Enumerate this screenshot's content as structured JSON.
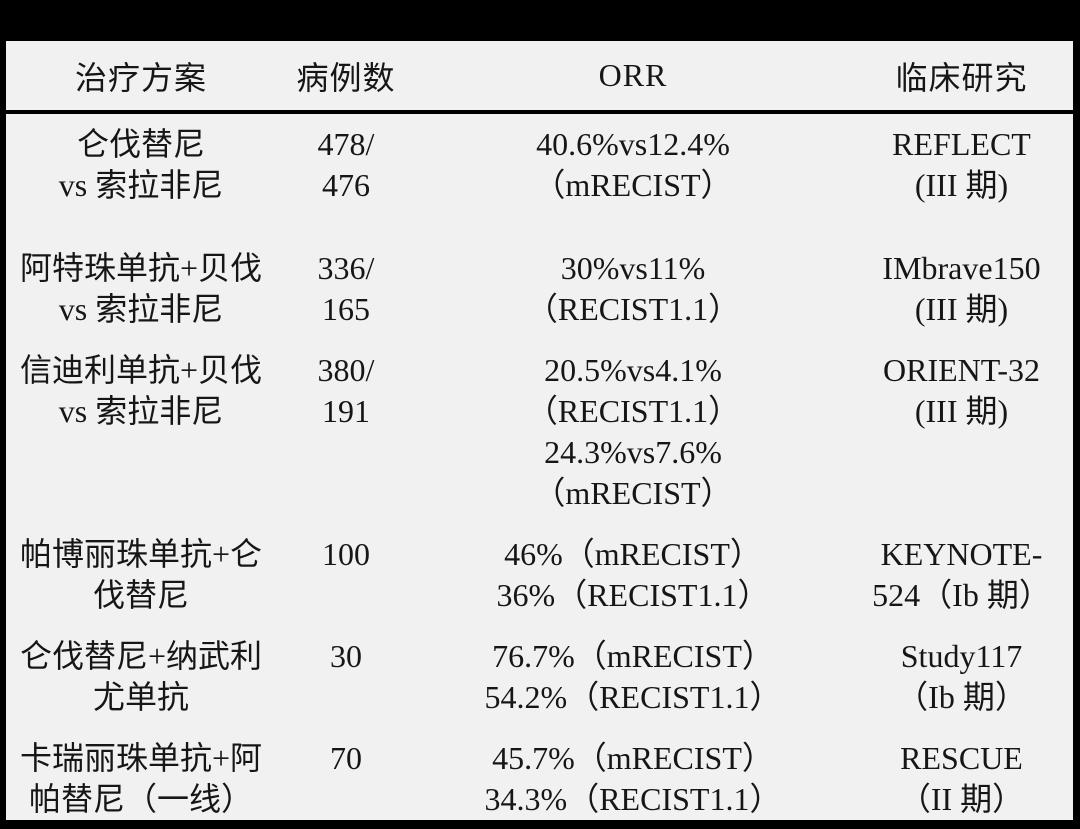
{
  "colors": {
    "page_bg": "#000000",
    "table_bg": "#f1f1f1",
    "text": "#161616",
    "rule": "#000000"
  },
  "table": {
    "headers": {
      "treatment": "治疗方案",
      "cases": "病例数",
      "orr": "ORR",
      "study": "临床研究"
    },
    "rows": [
      {
        "treatment": [
          "仑伐替尼",
          "vs 索拉非尼"
        ],
        "cases": [
          "478/",
          "476"
        ],
        "orr": [
          "40.6%vs12.4%",
          "（mRECIST）"
        ],
        "study": [
          "REFLECT",
          "(III 期)"
        ]
      },
      {
        "treatment": [
          "阿特珠单抗+贝伐",
          "vs 索拉非尼"
        ],
        "cases": [
          "336/",
          "165"
        ],
        "orr": [
          "30%vs11%",
          "（RECIST1.1）"
        ],
        "study": [
          "IMbrave150",
          "(III 期)"
        ]
      },
      {
        "treatment": [
          "信迪利单抗+贝伐",
          "vs 索拉非尼"
        ],
        "cases": [
          "380/",
          "191"
        ],
        "orr": [
          "20.5%vs4.1%",
          "（RECIST1.1）",
          "24.3%vs7.6%",
          "（mRECIST）"
        ],
        "study": [
          "ORIENT-32",
          "(III 期)"
        ]
      },
      {
        "treatment": [
          "帕博丽珠单抗+仑",
          "伐替尼"
        ],
        "cases": [
          "100"
        ],
        "orr": [
          "46%（mRECIST）",
          "36%（RECIST1.1）"
        ],
        "study": [
          "KEYNOTE-",
          "524（Ib 期）"
        ]
      },
      {
        "treatment": [
          "仑伐替尼+纳武利",
          "尤单抗"
        ],
        "cases": [
          "30"
        ],
        "orr": [
          "76.7%（mRECIST）",
          "54.2%（RECIST1.1）"
        ],
        "study": [
          "Study117",
          "（Ib 期）"
        ]
      },
      {
        "treatment": [
          "卡瑞丽珠单抗+阿",
          "帕替尼（一线）"
        ],
        "cases": [
          "70"
        ],
        "orr": [
          "45.7%（mRECIST）",
          "34.3%（RECIST1.1）"
        ],
        "study": [
          "RESCUE",
          "（II 期）"
        ]
      }
    ]
  }
}
